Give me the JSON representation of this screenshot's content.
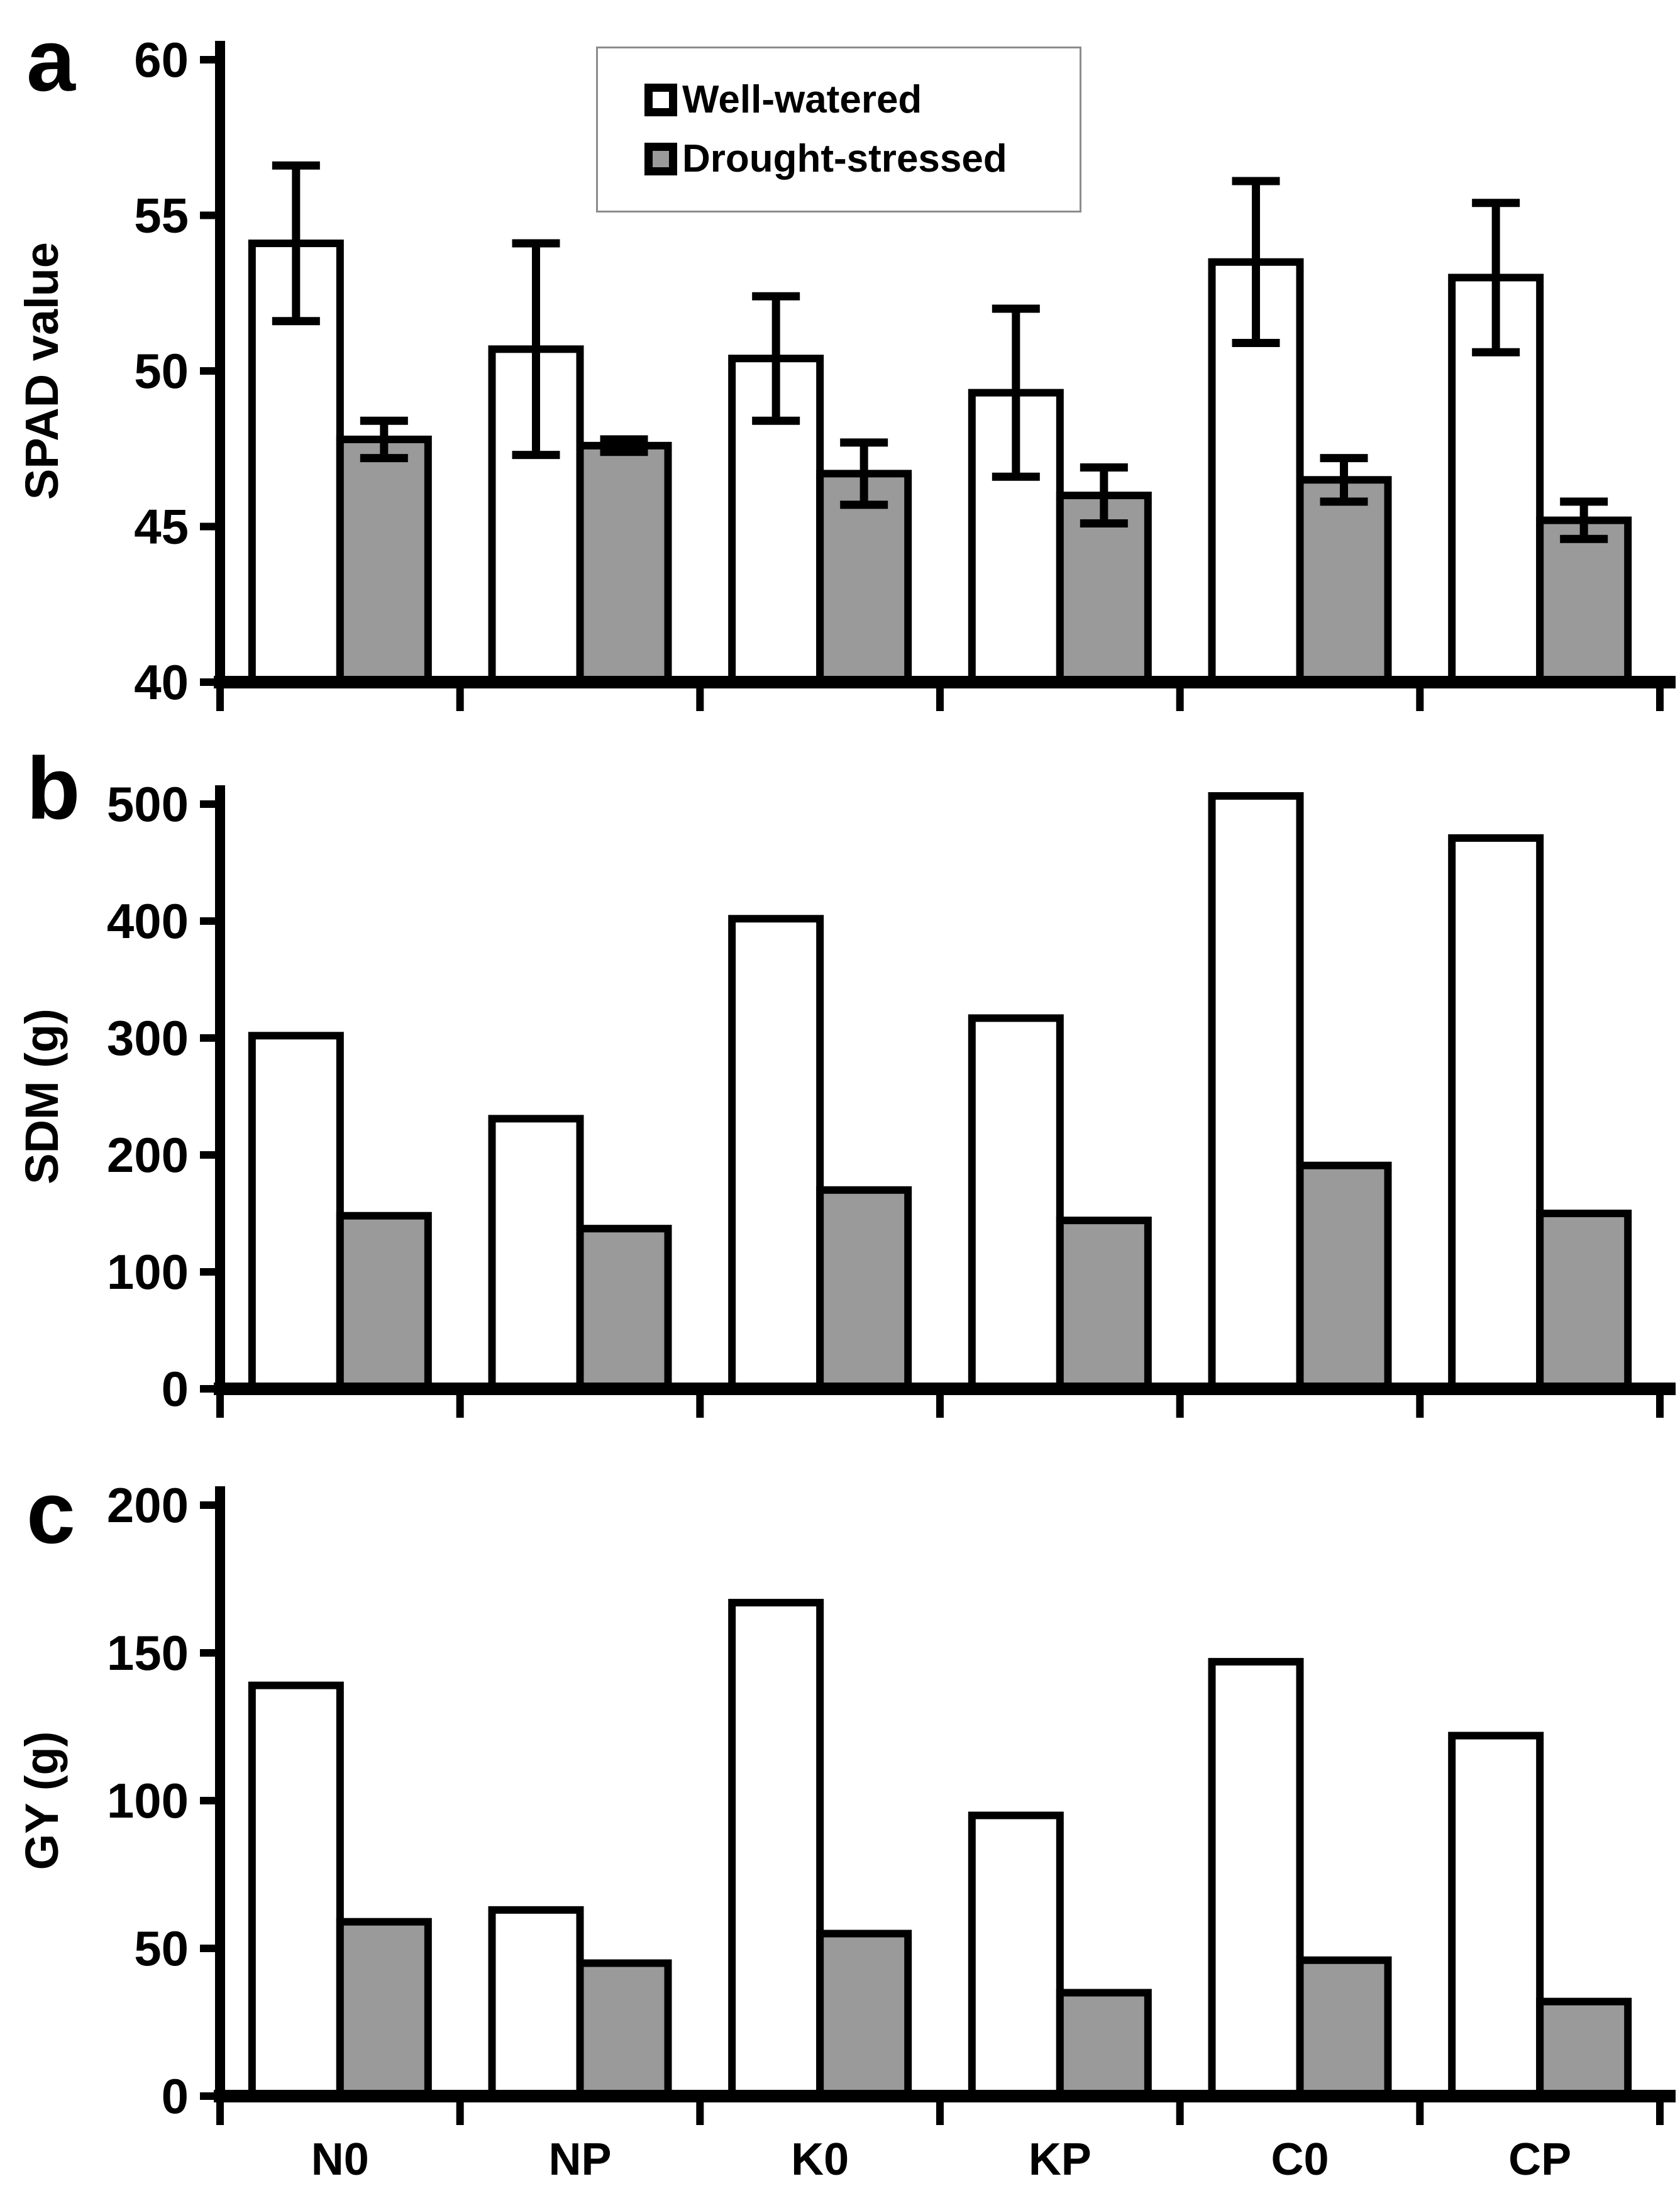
{
  "figure": {
    "background": "#ffffff",
    "panel_letters": [
      "a",
      "b",
      "c"
    ]
  },
  "legend": {
    "border_color": "#8c8c8c",
    "items": [
      {
        "label": "Well-watered",
        "swatch": "white-square-icon",
        "fill": "#ffffff"
      },
      {
        "label": "Drought-stressed",
        "swatch": "gray-square-icon",
        "fill": "#9a9a9a"
      }
    ]
  },
  "colors": {
    "bar_outline": "#000000",
    "well_watered_fill": "#ffffff",
    "drought_stressed_fill": "#9a9a9a",
    "axis": "#000000",
    "text": "#000000"
  },
  "chart_data": [
    {
      "type": "bar",
      "panel_letter": "a",
      "title": "",
      "xlabel": "",
      "ylabel": "SPAD value",
      "ylim": [
        40,
        60
      ],
      "yticks": [
        40,
        45,
        50,
        55,
        60
      ],
      "grid": false,
      "legend_position": "top-center-inside",
      "categories": [
        "N0",
        "NP",
        "K0",
        "KP",
        "C0",
        "CP"
      ],
      "show_category_labels": false,
      "series": [
        {
          "name": "Well-watered",
          "fill": "#ffffff",
          "values": [
            54.1,
            50.7,
            50.4,
            49.3,
            53.5,
            53.0
          ],
          "errors": [
            2.5,
            3.4,
            2.0,
            2.7,
            2.6,
            2.4
          ]
        },
        {
          "name": "Drought-stressed",
          "fill": "#9a9a9a",
          "values": [
            47.8,
            47.6,
            46.7,
            46.0,
            46.5,
            45.2
          ],
          "errors": [
            0.6,
            0.2,
            1.0,
            0.9,
            0.7,
            0.6
          ]
        }
      ]
    },
    {
      "type": "bar",
      "panel_letter": "b",
      "title": "",
      "xlabel": "",
      "ylabel": "SDM (g)",
      "ylim": [
        0,
        500
      ],
      "yticks": [
        0,
        100,
        200,
        300,
        400,
        500
      ],
      "grid": false,
      "categories": [
        "N0",
        "NP",
        "K0",
        "KP",
        "C0",
        "CP"
      ],
      "show_category_labels": false,
      "series": [
        {
          "name": "Well-watered",
          "fill": "#ffffff",
          "values": [
            302,
            231,
            402,
            317,
            507,
            471
          ]
        },
        {
          "name": "Drought-stressed",
          "fill": "#9a9a9a",
          "values": [
            148,
            137,
            170,
            144,
            191,
            150
          ]
        }
      ]
    },
    {
      "type": "bar",
      "panel_letter": "c",
      "title": "",
      "xlabel": "",
      "ylabel": "GY (g)",
      "ylim": [
        0,
        200
      ],
      "yticks": [
        0,
        50,
        100,
        150,
        200
      ],
      "grid": false,
      "categories": [
        "N0",
        "NP",
        "K0",
        "KP",
        "C0",
        "CP"
      ],
      "show_category_labels": true,
      "series": [
        {
          "name": "Well-watered",
          "fill": "#ffffff",
          "values": [
            139,
            63,
            167,
            95,
            147,
            122
          ]
        },
        {
          "name": "Drought-stressed",
          "fill": "#9a9a9a",
          "values": [
            59,
            45,
            55,
            35,
            46,
            32
          ]
        }
      ]
    }
  ]
}
